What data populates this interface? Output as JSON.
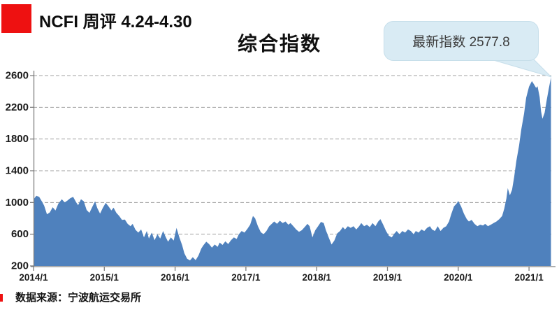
{
  "header": {
    "title": "NCFI 周评 4.24-4.30",
    "badge_color": "#ee1111"
  },
  "callout": {
    "text": "最新指数 2577.8",
    "bg": "#d9ebf4"
  },
  "footer": {
    "source_text": "数据来源：宁波航运交易所"
  },
  "chart_data": {
    "type": "area",
    "title": "综合指数",
    "series_name": "NCFI 综合指数",
    "latest_value": 2577.8,
    "area_color": "#4f81bd",
    "grid_color": "#a0a0a0",
    "axis_color": "#7f7f7f",
    "grid": "horizontal dashed",
    "legend": "none",
    "ylim": [
      200,
      2600
    ],
    "y_ticks": [
      200,
      600,
      1000,
      1400,
      1800,
      2200,
      2600
    ],
    "x_ticks": [
      "2014/1",
      "2015/1",
      "2016/1",
      "2017/1",
      "2018/1",
      "2019/1",
      "2020/1",
      "2021/1"
    ],
    "x_unit": "years since 2014/1 (weekly index values)",
    "points": [
      [
        0.0,
        1040
      ],
      [
        0.04,
        1085
      ],
      [
        0.08,
        1070
      ],
      [
        0.12,
        1010
      ],
      [
        0.15,
        960
      ],
      [
        0.19,
        850
      ],
      [
        0.23,
        875
      ],
      [
        0.27,
        940
      ],
      [
        0.31,
        900
      ],
      [
        0.35,
        985
      ],
      [
        0.4,
        1040
      ],
      [
        0.44,
        1000
      ],
      [
        0.48,
        1025
      ],
      [
        0.52,
        1055
      ],
      [
        0.56,
        1070
      ],
      [
        0.6,
        1005
      ],
      [
        0.63,
        965
      ],
      [
        0.67,
        1040
      ],
      [
        0.71,
        1015
      ],
      [
        0.75,
        905
      ],
      [
        0.79,
        870
      ],
      [
        0.83,
        945
      ],
      [
        0.87,
        1015
      ],
      [
        0.9,
        930
      ],
      [
        0.94,
        860
      ],
      [
        0.98,
        935
      ],
      [
        1.02,
        995
      ],
      [
        1.06,
        950
      ],
      [
        1.1,
        900
      ],
      [
        1.13,
        935
      ],
      [
        1.17,
        870
      ],
      [
        1.21,
        830
      ],
      [
        1.25,
        780
      ],
      [
        1.29,
        785
      ],
      [
        1.33,
        730
      ],
      [
        1.37,
        700
      ],
      [
        1.4,
        730
      ],
      [
        1.44,
        655
      ],
      [
        1.48,
        620
      ],
      [
        1.52,
        660
      ],
      [
        1.56,
        560
      ],
      [
        1.6,
        640
      ],
      [
        1.63,
        545
      ],
      [
        1.67,
        620
      ],
      [
        1.71,
        525
      ],
      [
        1.75,
        600
      ],
      [
        1.79,
        545
      ],
      [
        1.83,
        640
      ],
      [
        1.87,
        560
      ],
      [
        1.9,
        505
      ],
      [
        1.94,
        560
      ],
      [
        1.98,
        520
      ],
      [
        2.02,
        680
      ],
      [
        2.06,
        560
      ],
      [
        2.1,
        460
      ],
      [
        2.13,
        360
      ],
      [
        2.17,
        290
      ],
      [
        2.21,
        270
      ],
      [
        2.25,
        310
      ],
      [
        2.29,
        272
      ],
      [
        2.33,
        330
      ],
      [
        2.37,
        420
      ],
      [
        2.4,
        460
      ],
      [
        2.44,
        505
      ],
      [
        2.48,
        475
      ],
      [
        2.52,
        430
      ],
      [
        2.56,
        470
      ],
      [
        2.6,
        440
      ],
      [
        2.63,
        495
      ],
      [
        2.67,
        465
      ],
      [
        2.71,
        510
      ],
      [
        2.75,
        475
      ],
      [
        2.79,
        525
      ],
      [
        2.83,
        560
      ],
      [
        2.87,
        540
      ],
      [
        2.9,
        600
      ],
      [
        2.94,
        640
      ],
      [
        2.98,
        620
      ],
      [
        3.02,
        665
      ],
      [
        3.06,
        720
      ],
      [
        3.1,
        830
      ],
      [
        3.13,
        800
      ],
      [
        3.17,
        700
      ],
      [
        3.21,
        625
      ],
      [
        3.25,
        600
      ],
      [
        3.29,
        640
      ],
      [
        3.33,
        700
      ],
      [
        3.37,
        735
      ],
      [
        3.4,
        760
      ],
      [
        3.44,
        730
      ],
      [
        3.48,
        770
      ],
      [
        3.52,
        740
      ],
      [
        3.56,
        760
      ],
      [
        3.6,
        720
      ],
      [
        3.63,
        740
      ],
      [
        3.67,
        700
      ],
      [
        3.71,
        660
      ],
      [
        3.75,
        630
      ],
      [
        3.79,
        650
      ],
      [
        3.83,
        690
      ],
      [
        3.87,
        730
      ],
      [
        3.9,
        700
      ],
      [
        3.94,
        560
      ],
      [
        3.98,
        650
      ],
      [
        4.02,
        700
      ],
      [
        4.06,
        755
      ],
      [
        4.1,
        740
      ],
      [
        4.13,
        650
      ],
      [
        4.17,
        560
      ],
      [
        4.21,
        470
      ],
      [
        4.25,
        520
      ],
      [
        4.29,
        610
      ],
      [
        4.33,
        640
      ],
      [
        4.37,
        690
      ],
      [
        4.4,
        660
      ],
      [
        4.44,
        700
      ],
      [
        4.48,
        680
      ],
      [
        4.52,
        700
      ],
      [
        4.56,
        660
      ],
      [
        4.6,
        700
      ],
      [
        4.63,
        740
      ],
      [
        4.67,
        700
      ],
      [
        4.71,
        720
      ],
      [
        4.75,
        690
      ],
      [
        4.79,
        740
      ],
      [
        4.83,
        700
      ],
      [
        4.87,
        760
      ],
      [
        4.9,
        790
      ],
      [
        4.94,
        720
      ],
      [
        4.98,
        640
      ],
      [
        5.02,
        580
      ],
      [
        5.06,
        560
      ],
      [
        5.1,
        610
      ],
      [
        5.13,
        640
      ],
      [
        5.17,
        600
      ],
      [
        5.21,
        640
      ],
      [
        5.25,
        620
      ],
      [
        5.29,
        660
      ],
      [
        5.33,
        640
      ],
      [
        5.37,
        600
      ],
      [
        5.4,
        640
      ],
      [
        5.44,
        620
      ],
      [
        5.48,
        660
      ],
      [
        5.52,
        640
      ],
      [
        5.56,
        680
      ],
      [
        5.6,
        700
      ],
      [
        5.63,
        660
      ],
      [
        5.67,
        640
      ],
      [
        5.71,
        700
      ],
      [
        5.75,
        640
      ],
      [
        5.79,
        680
      ],
      [
        5.83,
        700
      ],
      [
        5.87,
        760
      ],
      [
        5.9,
        850
      ],
      [
        5.94,
        950
      ],
      [
        5.98,
        990
      ],
      [
        6.0,
        1020
      ],
      [
        6.04,
        950
      ],
      [
        6.08,
        860
      ],
      [
        6.12,
        790
      ],
      [
        6.15,
        760
      ],
      [
        6.19,
        780
      ],
      [
        6.23,
        730
      ],
      [
        6.27,
        700
      ],
      [
        6.31,
        720
      ],
      [
        6.35,
        710
      ],
      [
        6.38,
        730
      ],
      [
        6.42,
        700
      ],
      [
        6.46,
        720
      ],
      [
        6.5,
        740
      ],
      [
        6.54,
        760
      ],
      [
        6.58,
        790
      ],
      [
        6.62,
        830
      ],
      [
        6.65,
        920
      ],
      [
        6.68,
        1050
      ],
      [
        6.7,
        1180
      ],
      [
        6.73,
        1090
      ],
      [
        6.76,
        1160
      ],
      [
        6.79,
        1320
      ],
      [
        6.82,
        1520
      ],
      [
        6.86,
        1720
      ],
      [
        6.89,
        1920
      ],
      [
        6.93,
        2120
      ],
      [
        6.96,
        2320
      ],
      [
        7.0,
        2460
      ],
      [
        7.04,
        2530
      ],
      [
        7.07,
        2490
      ],
      [
        7.1,
        2445
      ],
      [
        7.12,
        2465
      ],
      [
        7.15,
        2330
      ],
      [
        7.17,
        2150
      ],
      [
        7.19,
        2055
      ],
      [
        7.22,
        2130
      ],
      [
        7.25,
        2290
      ],
      [
        7.28,
        2440
      ],
      [
        7.31,
        2577.8
      ]
    ]
  }
}
